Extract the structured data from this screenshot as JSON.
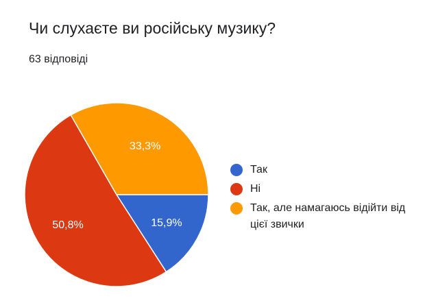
{
  "header": {
    "title": "Чи слухаєте ви російську музику?",
    "response_count": "63 відповіді"
  },
  "chart_data": {
    "type": "pie",
    "categories": [
      "Так",
      "Ні",
      "Так, але намагаюсь відійти від цієї  звички"
    ],
    "values": [
      15.9,
      50.8,
      33.3
    ],
    "value_labels": [
      "15,9%",
      "50,8%",
      "33,3%"
    ],
    "colors": [
      "#3366cc",
      "#dc3912",
      "#ff9900"
    ],
    "legend_position": "right"
  }
}
